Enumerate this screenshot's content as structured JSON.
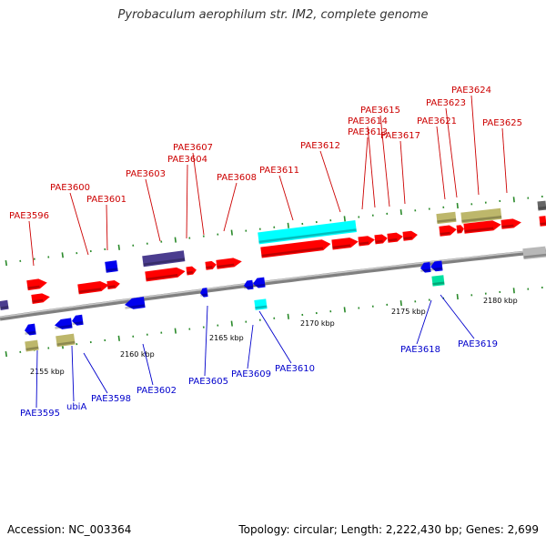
{
  "title": "Pyrobaculum aerophilum str. IM2, complete genome",
  "footer": {
    "accession": "Accession: NC_003364",
    "topology": "Topology: circular; Length: 2,222,430 bp; Genes: 2,699"
  },
  "colors": {
    "forward": "#ff0000",
    "reverse": "#0000ee",
    "rna": "#00ffff",
    "hypothetical": "#bdb76b",
    "other": "#4b3d8f",
    "gray": "#b8b8b8",
    "teal": "#00e0a0",
    "backbone": "#808080",
    "tick": "#2a8a2a",
    "label_forward": "#cc0000",
    "label_reverse": "#0000cc"
  },
  "scale_labels": [
    "2155 kbp",
    "2160 kbp",
    "2165 kbp",
    "2170 kbp",
    "2175 kbp",
    "2180 kbp"
  ],
  "forward_labels": [
    "PAE3596",
    "PAE3600",
    "PAE3601",
    "PAE3603",
    "PAE3604",
    "PAE3607",
    "PAE3608",
    "PAE3611",
    "PAE3612",
    "PAE3613",
    "PAE3614",
    "PAE3615",
    "PAE3617",
    "PAE3621",
    "PAE3623",
    "PAE3624",
    "PAE3625"
  ],
  "reverse_labels": [
    "PAE3595",
    "ubiA",
    "PAE3598",
    "PAE3602",
    "PAE3605",
    "PAE3609",
    "PAE3610",
    "PAE3618",
    "PAE3619"
  ]
}
